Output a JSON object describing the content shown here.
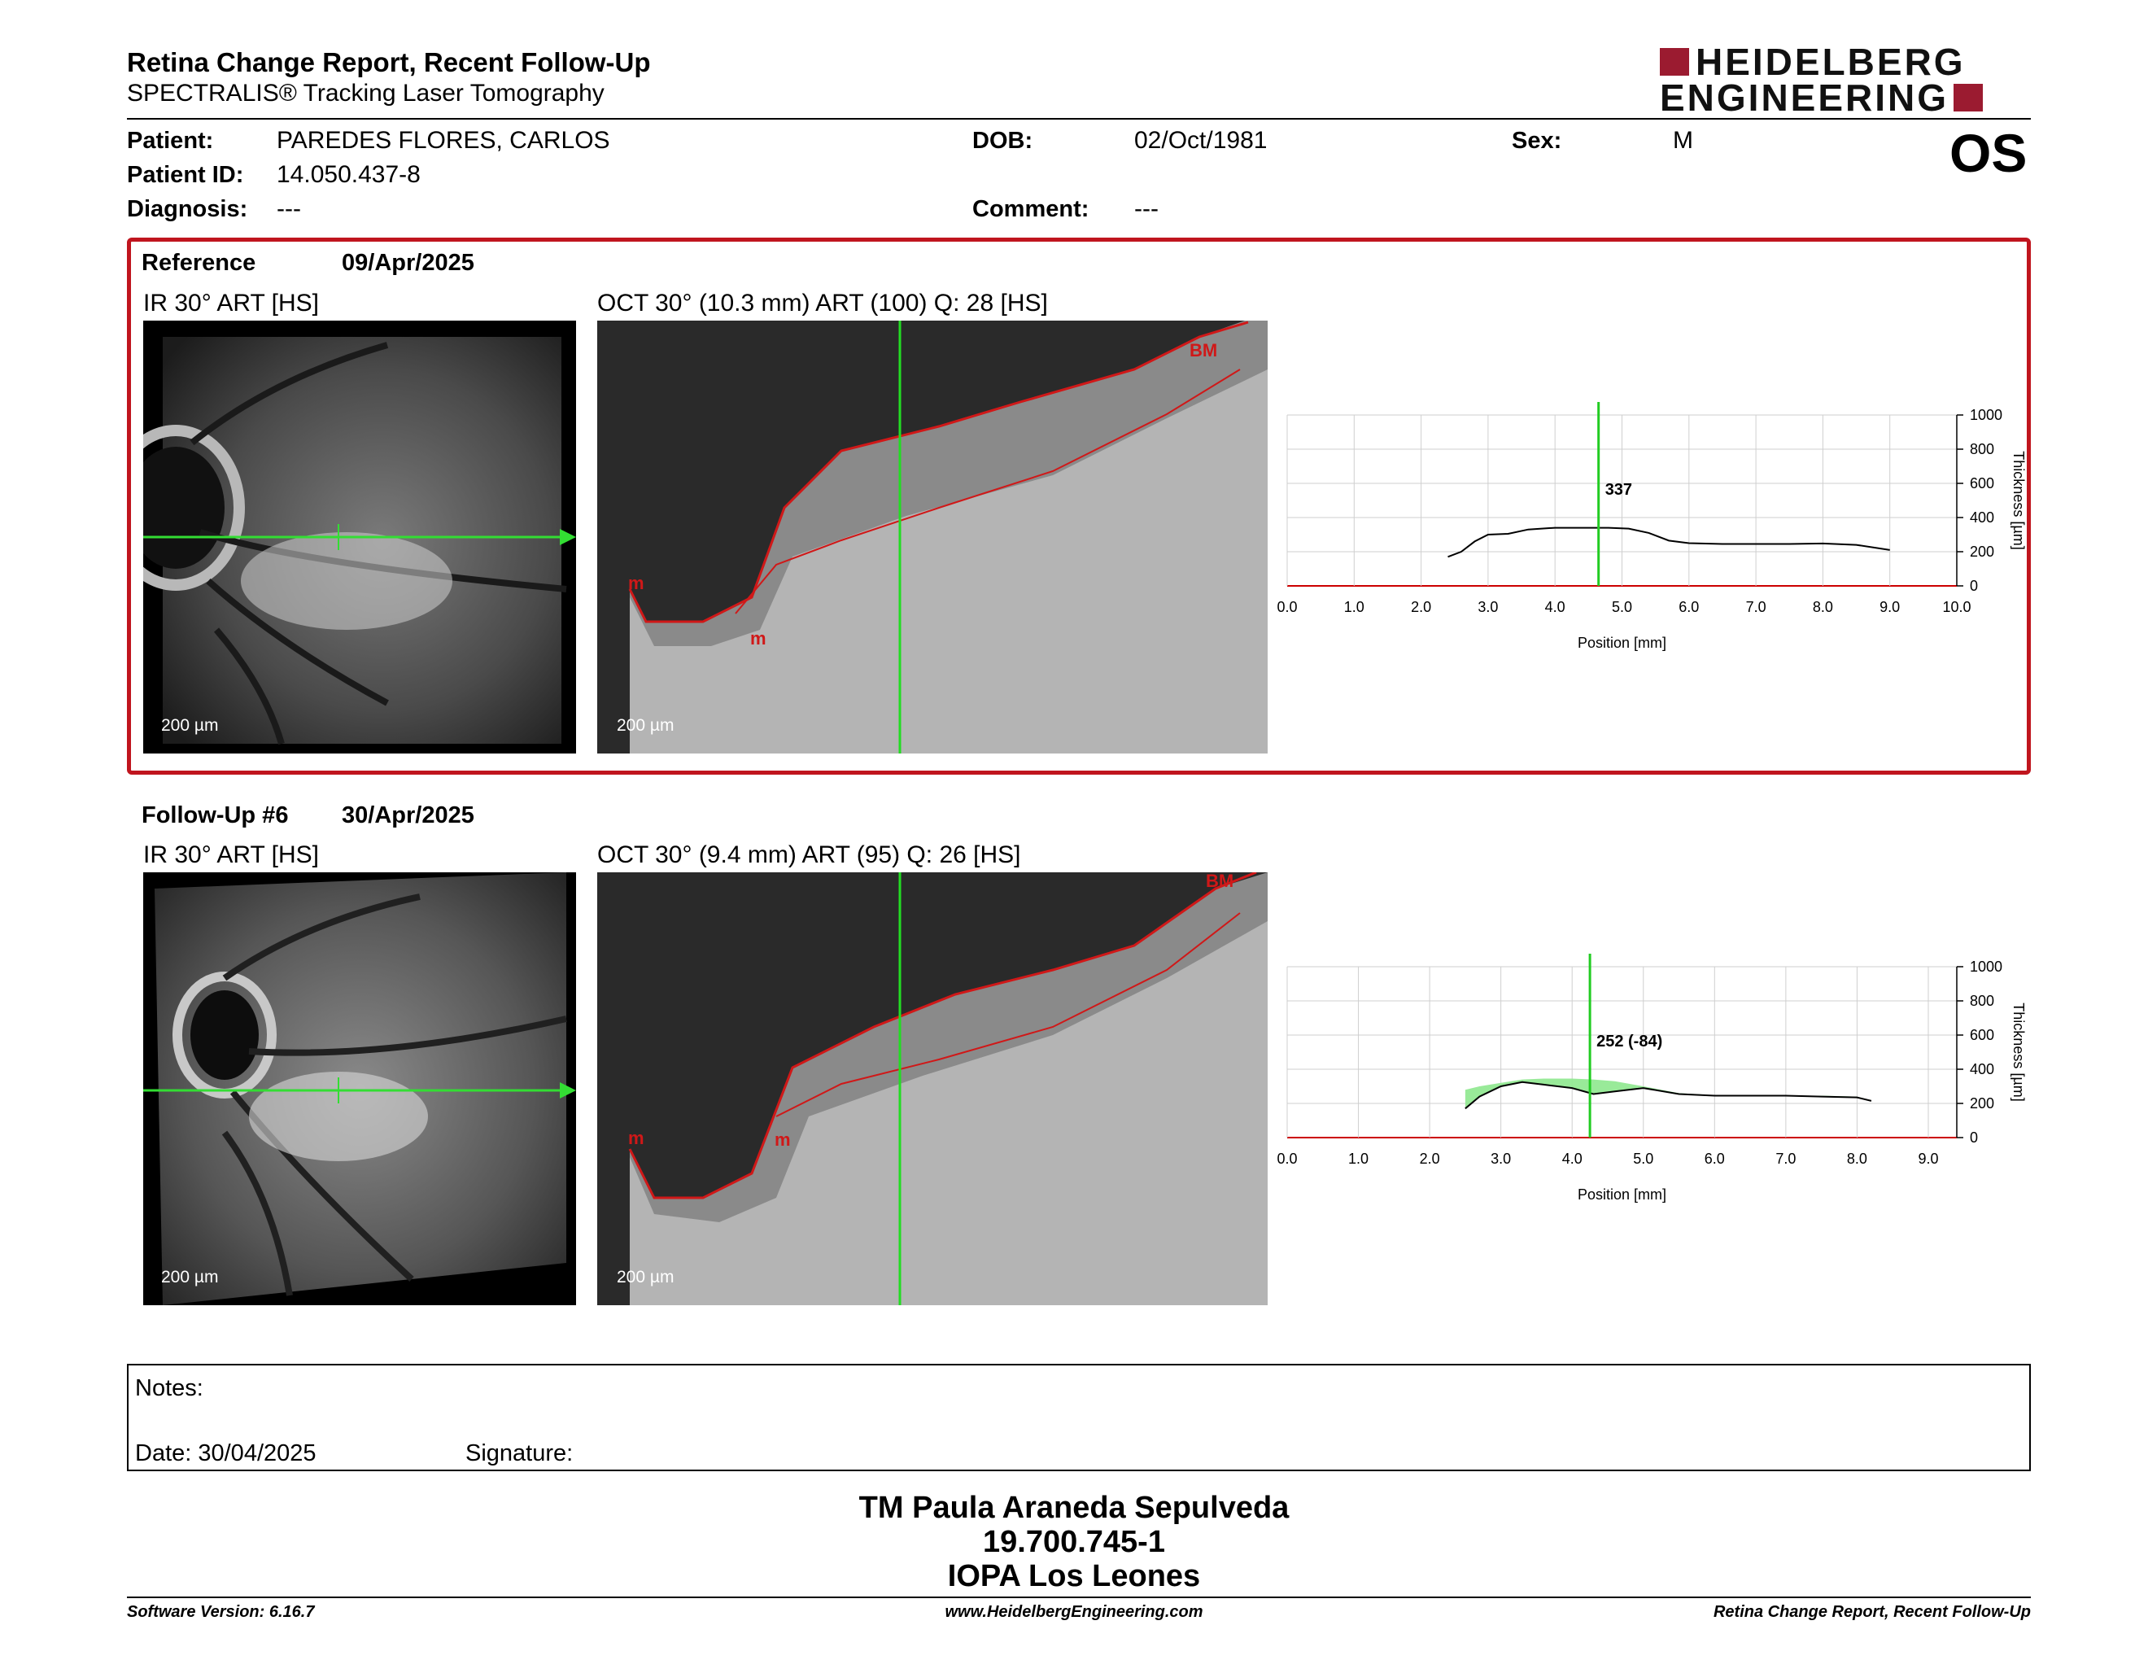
{
  "header": {
    "title": "Retina Change Report, Recent Follow-Up",
    "subtitle": "SPECTRALIS® Tracking Laser Tomography",
    "logo_line1": "HEIDELBERG",
    "logo_line2": "ENGINEERING",
    "eye": "OS"
  },
  "patient": {
    "name_label": "Patient:",
    "name": "PAREDES FLORES, CARLOS",
    "id_label": "Patient ID:",
    "id": "14.050.437-8",
    "diagnosis_label": "Diagnosis:",
    "diagnosis": "---",
    "dob_label": "DOB:",
    "dob": "02/Oct/1981",
    "comment_label": "Comment:",
    "comment": "---",
    "sex_label": "Sex:",
    "sex": "M"
  },
  "reference": {
    "label": "Reference",
    "date": "09/Apr/2025",
    "ir_caption": "IR 30° ART [HS]",
    "oct_caption": "OCT 30° (10.3 mm) ART (100) Q: 28 [HS]",
    "scale": "200 µm",
    "oct_markers": [
      "m",
      "m",
      "BM"
    ]
  },
  "followup": {
    "label": "Follow-Up #6",
    "date": "30/Apr/2025",
    "ir_caption": "IR 30° ART [HS]",
    "oct_caption": "OCT 30° (9.4 mm) ART (95) Q: 26 [HS]",
    "scale": "200 µm",
    "oct_markers": [
      "m",
      "m",
      "BM"
    ]
  },
  "chart_data": [
    {
      "type": "line",
      "xlabel": "Position [mm]",
      "ylabel": "Thickness [µm]",
      "xlim": [
        0,
        10
      ],
      "ylim": [
        0,
        1000
      ],
      "x_ticks": [
        "0.0",
        "1.0",
        "2.0",
        "3.0",
        "4.0",
        "5.0",
        "6.0",
        "7.0",
        "8.0",
        "9.0",
        "10.0"
      ],
      "y_ticks": [
        "0",
        "200",
        "400",
        "600",
        "800",
        "1000"
      ],
      "cursor_x": 4.65,
      "cursor_label": "337",
      "grid": true,
      "series": [
        {
          "x": [
            2.4,
            2.6,
            2.8,
            3.0,
            3.3,
            3.6,
            4.0,
            4.4,
            4.8,
            5.1,
            5.4,
            5.7,
            6.0,
            6.5,
            7.0,
            7.5,
            8.0,
            8.5,
            9.0
          ],
          "y": [
            170,
            200,
            260,
            300,
            305,
            330,
            340,
            340,
            340,
            335,
            310,
            265,
            250,
            245,
            245,
            245,
            248,
            240,
            210
          ]
        }
      ],
      "line_color": "#000000",
      "cursor_color": "#22cc22"
    },
    {
      "type": "area",
      "xlabel": "Position [mm]",
      "ylabel": "Thickness [µm]",
      "xlim": [
        0,
        9.4
      ],
      "ylim": [
        0,
        1000
      ],
      "x_ticks": [
        "0.0",
        "1.0",
        "2.0",
        "3.0",
        "4.0",
        "5.0",
        "6.0",
        "7.0",
        "8.0",
        "9.0"
      ],
      "y_ticks": [
        "0",
        "200",
        "400",
        "600",
        "800",
        "1000"
      ],
      "cursor_x": 4.25,
      "cursor_label": "252 (-84)",
      "grid": true,
      "series": [
        {
          "x": [
            2.5,
            2.7,
            3.0,
            3.3,
            3.6,
            4.0,
            4.3,
            4.6,
            5.0,
            5.5,
            6.0,
            6.5,
            7.0,
            7.5,
            8.0,
            8.2
          ],
          "y": [
            170,
            240,
            300,
            325,
            310,
            290,
            255,
            270,
            290,
            255,
            245,
            245,
            245,
            240,
            235,
            215
          ]
        },
        {
          "x": [
            2.5,
            2.7,
            3.0,
            3.3,
            3.6,
            4.0,
            4.3,
            4.6,
            5.0,
            5.5,
            6.0,
            6.5,
            7.0,
            7.5,
            8.0,
            8.2
          ],
          "y": [
            280,
            300,
            320,
            340,
            345,
            345,
            340,
            330,
            300,
            260,
            248,
            245,
            245,
            245,
            240,
            215
          ]
        }
      ],
      "line_color": "#000000",
      "fill_color": "#8ee88e",
      "cursor_color": "#22cc22"
    }
  ],
  "notes": {
    "notes_label": "Notes:",
    "date_label": "Date: 30/04/2025",
    "signature_label": "Signature:"
  },
  "signatory": {
    "name": "TM Paula Araneda Sepulveda",
    "id": "19.700.745-1",
    "clinic": "IOPA Los Leones"
  },
  "footer": {
    "software": "Software Version: 6.16.7",
    "url": "www.HeidelbergEngineering.com",
    "report": "Retina Change Report, Recent Follow-Up"
  }
}
